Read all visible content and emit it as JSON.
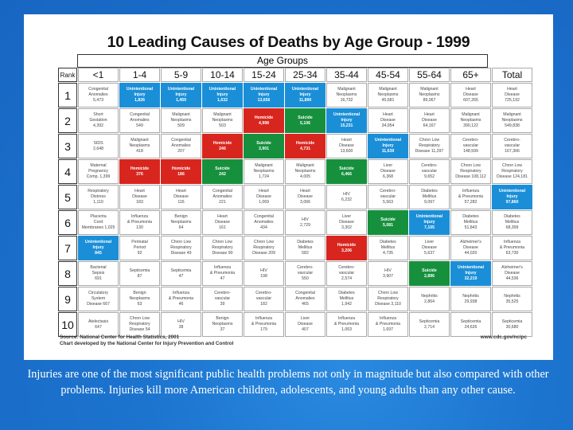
{
  "title": "10 Leading Causes of Deaths by Age Group - 1999",
  "age_groups_label": "Age Groups",
  "rank_label": "Rank",
  "columns": [
    "<1",
    "1-4",
    "5-9",
    "10-14",
    "15-24",
    "25-34",
    "35-44",
    "45-54",
    "55-64",
    "65+",
    "Total"
  ],
  "colors": {
    "unintentional_injury": "#1a8fd8",
    "homicide": "#d8261e",
    "suicide": "#17903e"
  },
  "rows": [
    {
      "rank": "1",
      "cells": [
        {
          "text": "Congenital\nAnomalies\n5,473",
          "type": "w"
        },
        {
          "text": "Unintentional\nInjury\n1,826",
          "type": "b"
        },
        {
          "text": "Unintentional\nInjury\n1,459",
          "type": "b"
        },
        {
          "text": "Unintentional\nInjury\n1,632",
          "type": "b"
        },
        {
          "text": "Unintentional\nInjury\n13,656",
          "type": "b"
        },
        {
          "text": "Unintentional\nInjury\n11,890",
          "type": "b"
        },
        {
          "text": "Malignant\nNeoplasms\n16,732",
          "type": "w"
        },
        {
          "text": "Malignant\nNeoplasms\n45,681",
          "type": "w"
        },
        {
          "text": "Malignant\nNeoplasms\n89,067",
          "type": "w"
        },
        {
          "text": "Heart\nDisease\n607,265",
          "type": "w"
        },
        {
          "text": "Heart\nDisease\n725,192",
          "type": "w"
        }
      ]
    },
    {
      "rank": "2",
      "cells": [
        {
          "text": "Short\nGestation\n4,392",
          "type": "w"
        },
        {
          "text": "Congenital\nAnomalies\n549",
          "type": "w"
        },
        {
          "text": "Malignant\nNeoplasms\n509",
          "type": "w"
        },
        {
          "text": "Malignant\nNeoplasms\n503",
          "type": "w"
        },
        {
          "text": "Homicide\n4,998",
          "type": "r"
        },
        {
          "text": "Suicide\n5,106",
          "type": "g"
        },
        {
          "text": "Unintentional\nInjury\n15,231",
          "type": "b"
        },
        {
          "text": "Heart\nDisease\n34,954",
          "type": "w"
        },
        {
          "text": "Heart\nDisease\n64,167",
          "type": "w"
        },
        {
          "text": "Malignant\nNeoplasms\n390,122",
          "type": "w"
        },
        {
          "text": "Malignant\nNeoplasms\n549,838",
          "type": "w"
        }
      ]
    },
    {
      "rank": "3",
      "cells": [
        {
          "text": "SIDS\n2,648",
          "type": "w"
        },
        {
          "text": "Malignant\nNeoplasms\n418",
          "type": "w"
        },
        {
          "text": "Congenital\nAnomalies\n207",
          "type": "w"
        },
        {
          "text": "Homicide\n246",
          "type": "r"
        },
        {
          "text": "Suicide\n3,901",
          "type": "g"
        },
        {
          "text": "Homicide\n4,731",
          "type": "r"
        },
        {
          "text": "Heart\nDisease\n13,600",
          "type": "w"
        },
        {
          "text": "Unintentional\nInjury\n11,639",
          "type": "b"
        },
        {
          "text": "Chron Low\nRespiratory\nDisease 11,297",
          "type": "w"
        },
        {
          "text": "Cerebro-\nvascular\n148,599",
          "type": "w"
        },
        {
          "text": "Cerebro-\nvascular\n167,366",
          "type": "w"
        }
      ]
    },
    {
      "rank": "4",
      "cells": [
        {
          "text": "Maternal\nPregnancy\nComp. 1,399",
          "type": "w"
        },
        {
          "text": "Homicide\n376",
          "type": "r"
        },
        {
          "text": "Homicide\n186",
          "type": "r"
        },
        {
          "text": "Suicide\n242",
          "type": "g"
        },
        {
          "text": "Malignant\nNeoplasms\n1,724",
          "type": "w"
        },
        {
          "text": "Malignant\nNeoplasms\n4,005",
          "type": "w"
        },
        {
          "text": "Suicide\n6,466",
          "type": "g"
        },
        {
          "text": "Liver\nDisease\n6,368",
          "type": "w"
        },
        {
          "text": "Cerebro-\nvascular\n9,652",
          "type": "w"
        },
        {
          "text": "Chron Low\nRespiratory\nDisease 108,112",
          "type": "w"
        },
        {
          "text": "Chron Low\nRespiratory\nDisease 124,181",
          "type": "w"
        }
      ]
    },
    {
      "rank": "5",
      "cells": [
        {
          "text": "Respiratory\nDistress\n1,110",
          "type": "w"
        },
        {
          "text": "Heart\nDisease\n183",
          "type": "w"
        },
        {
          "text": "Heart\nDisease\n116",
          "type": "w"
        },
        {
          "text": "Congenital\nAnomalies\n221",
          "type": "w"
        },
        {
          "text": "Heart\nDisease\n1,069",
          "type": "w"
        },
        {
          "text": "Heart\nDisease\n3,066",
          "type": "w"
        },
        {
          "text": "HIV\n6,232",
          "type": "w"
        },
        {
          "text": "Cerebro-\nvascular\n5,563",
          "type": "w"
        },
        {
          "text": "Diabetes\nMellitus\n9,097",
          "type": "w"
        },
        {
          "text": "Influenza\n& Pneumonia\n57,282",
          "type": "w"
        },
        {
          "text": "Unintentional\nInjury\n97,860",
          "type": "b"
        }
      ]
    },
    {
      "rank": "6",
      "cells": [
        {
          "text": "Placenta\nCord\nMembranes 1,025",
          "type": "w"
        },
        {
          "text": "Influenza\n& Pneumonia\n130",
          "type": "w"
        },
        {
          "text": "Benign\nNeoplasms\n64",
          "type": "w"
        },
        {
          "text": "Heart\nDisease\n161",
          "type": "w"
        },
        {
          "text": "Congenital\nAnomalies\n434",
          "type": "w"
        },
        {
          "text": "HIV\n2,729",
          "type": "w"
        },
        {
          "text": "Liver\nDisease\n3,302",
          "type": "w"
        },
        {
          "text": "Suicide\n5,081",
          "type": "g"
        },
        {
          "text": "Unintentional\nInjury\n7,105",
          "type": "b"
        },
        {
          "text": "Diabetes\nMellitus\n51,843",
          "type": "w"
        },
        {
          "text": "Diabetes\nMellitus\n68,399",
          "type": "w"
        }
      ]
    },
    {
      "rank": "7",
      "cells": [
        {
          "text": "Unintentional\nInjury\n845",
          "type": "b"
        },
        {
          "text": "Perinatal\nPeriod\n92",
          "type": "w"
        },
        {
          "text": "Chron Low\nRespiratory\nDisease 49",
          "type": "w"
        },
        {
          "text": "Chron Low\nRespiratory\nDisease 90",
          "type": "w"
        },
        {
          "text": "Chron Low\nRespiratory\nDisease 209",
          "type": "w"
        },
        {
          "text": "Diabetes\nMellitus\n582",
          "type": "w"
        },
        {
          "text": "Homicide\n3,206",
          "type": "r"
        },
        {
          "text": "Diabetes\nMellitus\n4,735",
          "type": "w"
        },
        {
          "text": "Liver\nDisease\n5,637",
          "type": "w"
        },
        {
          "text": "Alzheimer's\nDisease\n44,020",
          "type": "w"
        },
        {
          "text": "Influenza\n& Pneumonia\n63,730",
          "type": "w"
        }
      ]
    },
    {
      "rank": "8",
      "cells": [
        {
          "text": "Bacterial\nSepsis\n691",
          "type": "w"
        },
        {
          "text": "Septicemia\n87",
          "type": "w"
        },
        {
          "text": "Septicemia\n47",
          "type": "w"
        },
        {
          "text": "Influenza\n& Pneumonia\n47",
          "type": "w"
        },
        {
          "text": "HIV\n198",
          "type": "w"
        },
        {
          "text": "Cerebro-\nvascular\n550",
          "type": "w"
        },
        {
          "text": "Cerebro-\nvascular\n2,574",
          "type": "w"
        },
        {
          "text": "HIV\n3,907",
          "type": "w"
        },
        {
          "text": "Suicide\n2,896",
          "type": "g"
        },
        {
          "text": "Unintentional\nInjury\n32,219",
          "type": "b"
        },
        {
          "text": "Alzheimer's\nDisease\n44,536",
          "type": "w"
        }
      ]
    },
    {
      "rank": "9",
      "cells": [
        {
          "text": "Circulatory\nSystem\nDisease 667",
          "type": "w"
        },
        {
          "text": "Benign\nNeoplasms\n63",
          "type": "w"
        },
        {
          "text": "Influenza\n& Pneumonia\n46",
          "type": "w"
        },
        {
          "text": "Cerebro-\nvascular\n39",
          "type": "w"
        },
        {
          "text": "Cerebro-\nvascular\n182",
          "type": "w"
        },
        {
          "text": "Congenital\nAnomalies\n465",
          "type": "w"
        },
        {
          "text": "Diabetes\nMellitus\n1,942",
          "type": "w"
        },
        {
          "text": "Chron Low\nRespiratory\nDisease 3,110",
          "type": "w"
        },
        {
          "text": "Nephritis\n2,864",
          "type": "w"
        },
        {
          "text": "Nephritis\n29,938",
          "type": "w"
        },
        {
          "text": "Nephritis\n35,525",
          "type": "w"
        }
      ]
    },
    {
      "rank": "10",
      "cells": [
        {
          "text": "Atelectasis\n647",
          "type": "w"
        },
        {
          "text": "Chron Low\nRespiratory\nDisease 54",
          "type": "w"
        },
        {
          "text": "HIV\n38",
          "type": "w"
        },
        {
          "text": "Benign\nNeoplasms\n37",
          "type": "w"
        },
        {
          "text": "Influenza\n& Pneumonia\n179",
          "type": "w"
        },
        {
          "text": "Liver\nDisease\n407",
          "type": "w"
        },
        {
          "text": "Influenza\n& Pneumonia\n1,063",
          "type": "w"
        },
        {
          "text": "Influenza\n& Pneumonia\n1,697",
          "type": "w"
        },
        {
          "text": "Septicemia\n2,714",
          "type": "w"
        },
        {
          "text": "Septicemia\n24,626",
          "type": "w"
        },
        {
          "text": "Septicemia\n30,680",
          "type": "w"
        }
      ]
    }
  ],
  "source_line1": "Source:  National Center for Health Statistics, 2001",
  "source_line2": "Chart developed by the National Center for Injury Prevention and Control",
  "url": "www.cdc.gov/ncipc",
  "caption": "Injuries are one of the most significant public health problems not only in magnitude but also compared with other problems. Injuries kill more American children, adolescents, and young adults than any other cause."
}
